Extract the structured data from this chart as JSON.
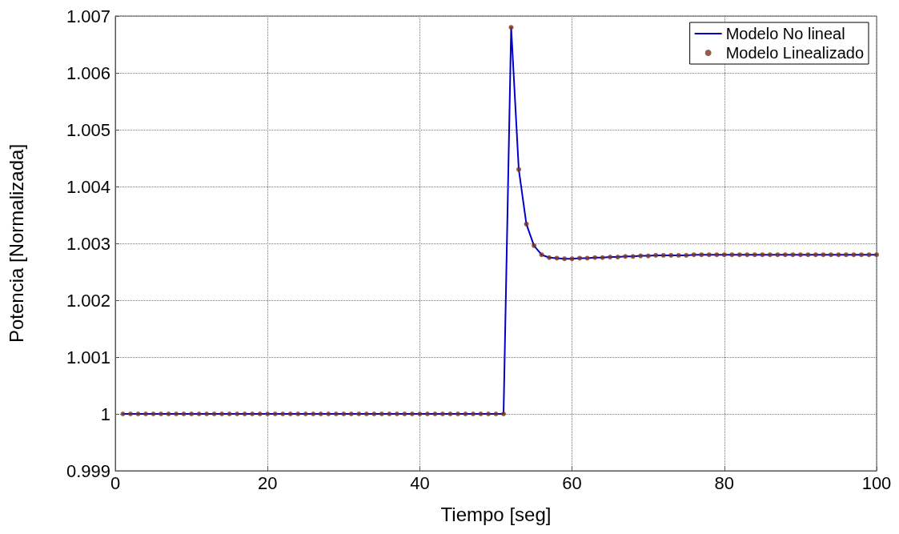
{
  "chart_data": {
    "type": "line",
    "xlabel": "Tiempo [seg]",
    "ylabel": "Potencia [Normalizada]",
    "x": [
      1,
      2,
      3,
      4,
      5,
      6,
      7,
      8,
      9,
      10,
      11,
      12,
      13,
      14,
      15,
      16,
      17,
      18,
      19,
      20,
      21,
      22,
      23,
      24,
      25,
      26,
      27,
      28,
      29,
      30,
      31,
      32,
      33,
      34,
      35,
      36,
      37,
      38,
      39,
      40,
      41,
      42,
      43,
      44,
      45,
      46,
      47,
      48,
      49,
      50,
      51,
      52,
      53,
      54,
      55,
      56,
      57,
      58,
      59,
      60,
      61,
      62,
      63,
      64,
      65,
      66,
      67,
      68,
      69,
      70,
      71,
      72,
      73,
      74,
      75,
      76,
      77,
      78,
      79,
      80,
      81,
      82,
      83,
      84,
      85,
      86,
      87,
      88,
      89,
      90,
      91,
      92,
      93,
      94,
      95,
      96,
      97,
      98,
      99,
      100
    ],
    "series": [
      {
        "name": "Modelo No lineal",
        "marker": "none",
        "line_style": "solid",
        "color": "#0000c8",
        "values": [
          1,
          1,
          1,
          1,
          1,
          1,
          1,
          1,
          1,
          1,
          1,
          1,
          1,
          1,
          1,
          1,
          1,
          1,
          1,
          1,
          1,
          1,
          1,
          1,
          1,
          1,
          1,
          1,
          1,
          1,
          1,
          1,
          1,
          1,
          1,
          1,
          1,
          1,
          1,
          1,
          1,
          1,
          1,
          1,
          1,
          1,
          1,
          1,
          1,
          1,
          1,
          1.0068,
          1.0043,
          1.00334,
          1.00296,
          1.0028,
          1.00275,
          1.00274,
          1.00273,
          1.00273,
          1.00274,
          1.00274,
          1.00275,
          1.00275,
          1.00276,
          1.00276,
          1.00277,
          1.00277,
          1.00278,
          1.00278,
          1.00279,
          1.00279,
          1.00279,
          1.00279,
          1.00279,
          1.0028,
          1.0028,
          1.0028,
          1.0028,
          1.0028,
          1.0028,
          1.0028,
          1.0028,
          1.0028,
          1.0028,
          1.0028,
          1.0028,
          1.0028,
          1.0028,
          1.0028,
          1.0028,
          1.0028,
          1.0028,
          1.0028,
          1.0028,
          1.0028,
          1.0028,
          1.0028,
          1.0028,
          1.0028
        ]
      },
      {
        "name": "Modelo Linealizado",
        "type": "scatter",
        "marker": "circle",
        "color": "#7a3524",
        "values": [
          1,
          1,
          1,
          1,
          1,
          1,
          1,
          1,
          1,
          1,
          1,
          1,
          1,
          1,
          1,
          1,
          1,
          1,
          1,
          1,
          1,
          1,
          1,
          1,
          1,
          1,
          1,
          1,
          1,
          1,
          1,
          1,
          1,
          1,
          1,
          1,
          1,
          1,
          1,
          1,
          1,
          1,
          1,
          1,
          1,
          1,
          1,
          1,
          1,
          1,
          1,
          1.0068,
          1.0043,
          1.00334,
          1.00296,
          1.0028,
          1.00275,
          1.00274,
          1.00273,
          1.00273,
          1.00274,
          1.00274,
          1.00275,
          1.00275,
          1.00276,
          1.00276,
          1.00277,
          1.00277,
          1.00278,
          1.00278,
          1.00279,
          1.00279,
          1.00279,
          1.00279,
          1.00279,
          1.0028,
          1.0028,
          1.0028,
          1.0028,
          1.0028,
          1.0028,
          1.0028,
          1.0028,
          1.0028,
          1.0028,
          1.0028,
          1.0028,
          1.0028,
          1.0028,
          1.0028,
          1.0028,
          1.0028,
          1.0028,
          1.0028,
          1.0028,
          1.0028,
          1.0028,
          1.0028,
          1.0028,
          1.0028
        ]
      }
    ],
    "xlim": [
      0,
      100
    ],
    "xticks": [
      0,
      20,
      40,
      60,
      80,
      100
    ],
    "ylim": [
      0.999,
      1.007
    ],
    "yticks": [
      0.999,
      1,
      1.001,
      1.002,
      1.003,
      1.004,
      1.005,
      1.006,
      1.007
    ],
    "grid": true,
    "legend": "top right"
  }
}
